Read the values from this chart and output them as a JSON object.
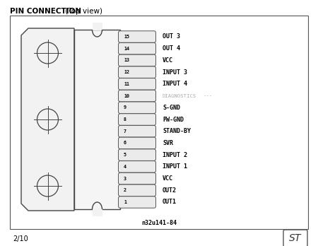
{
  "title_bold": "PIN CONNECTION",
  "title_normal": " (Top view)",
  "page_num": "2/10",
  "figure_ref": "n32u141-84",
  "background": "#ffffff",
  "border_color": "#555555",
  "pin_labels": [
    "OUT 3",
    "OUT 4",
    "VCC",
    "INPUT 3",
    "INPUT 4",
    "DIAGNOSTICS  ---",
    "S-GND",
    "PW-GND",
    "STAND-BY",
    "SVR",
    "INPUT 2",
    "INPUT 1",
    "VCC",
    "OUT2",
    "OUT1"
  ],
  "pin_numbers": [
    15,
    14,
    13,
    12,
    11,
    10,
    9,
    8,
    7,
    6,
    5,
    4,
    3,
    2,
    1
  ],
  "diagnostics_idx": 5,
  "text_color": "#000000",
  "diag_color": "#999999"
}
